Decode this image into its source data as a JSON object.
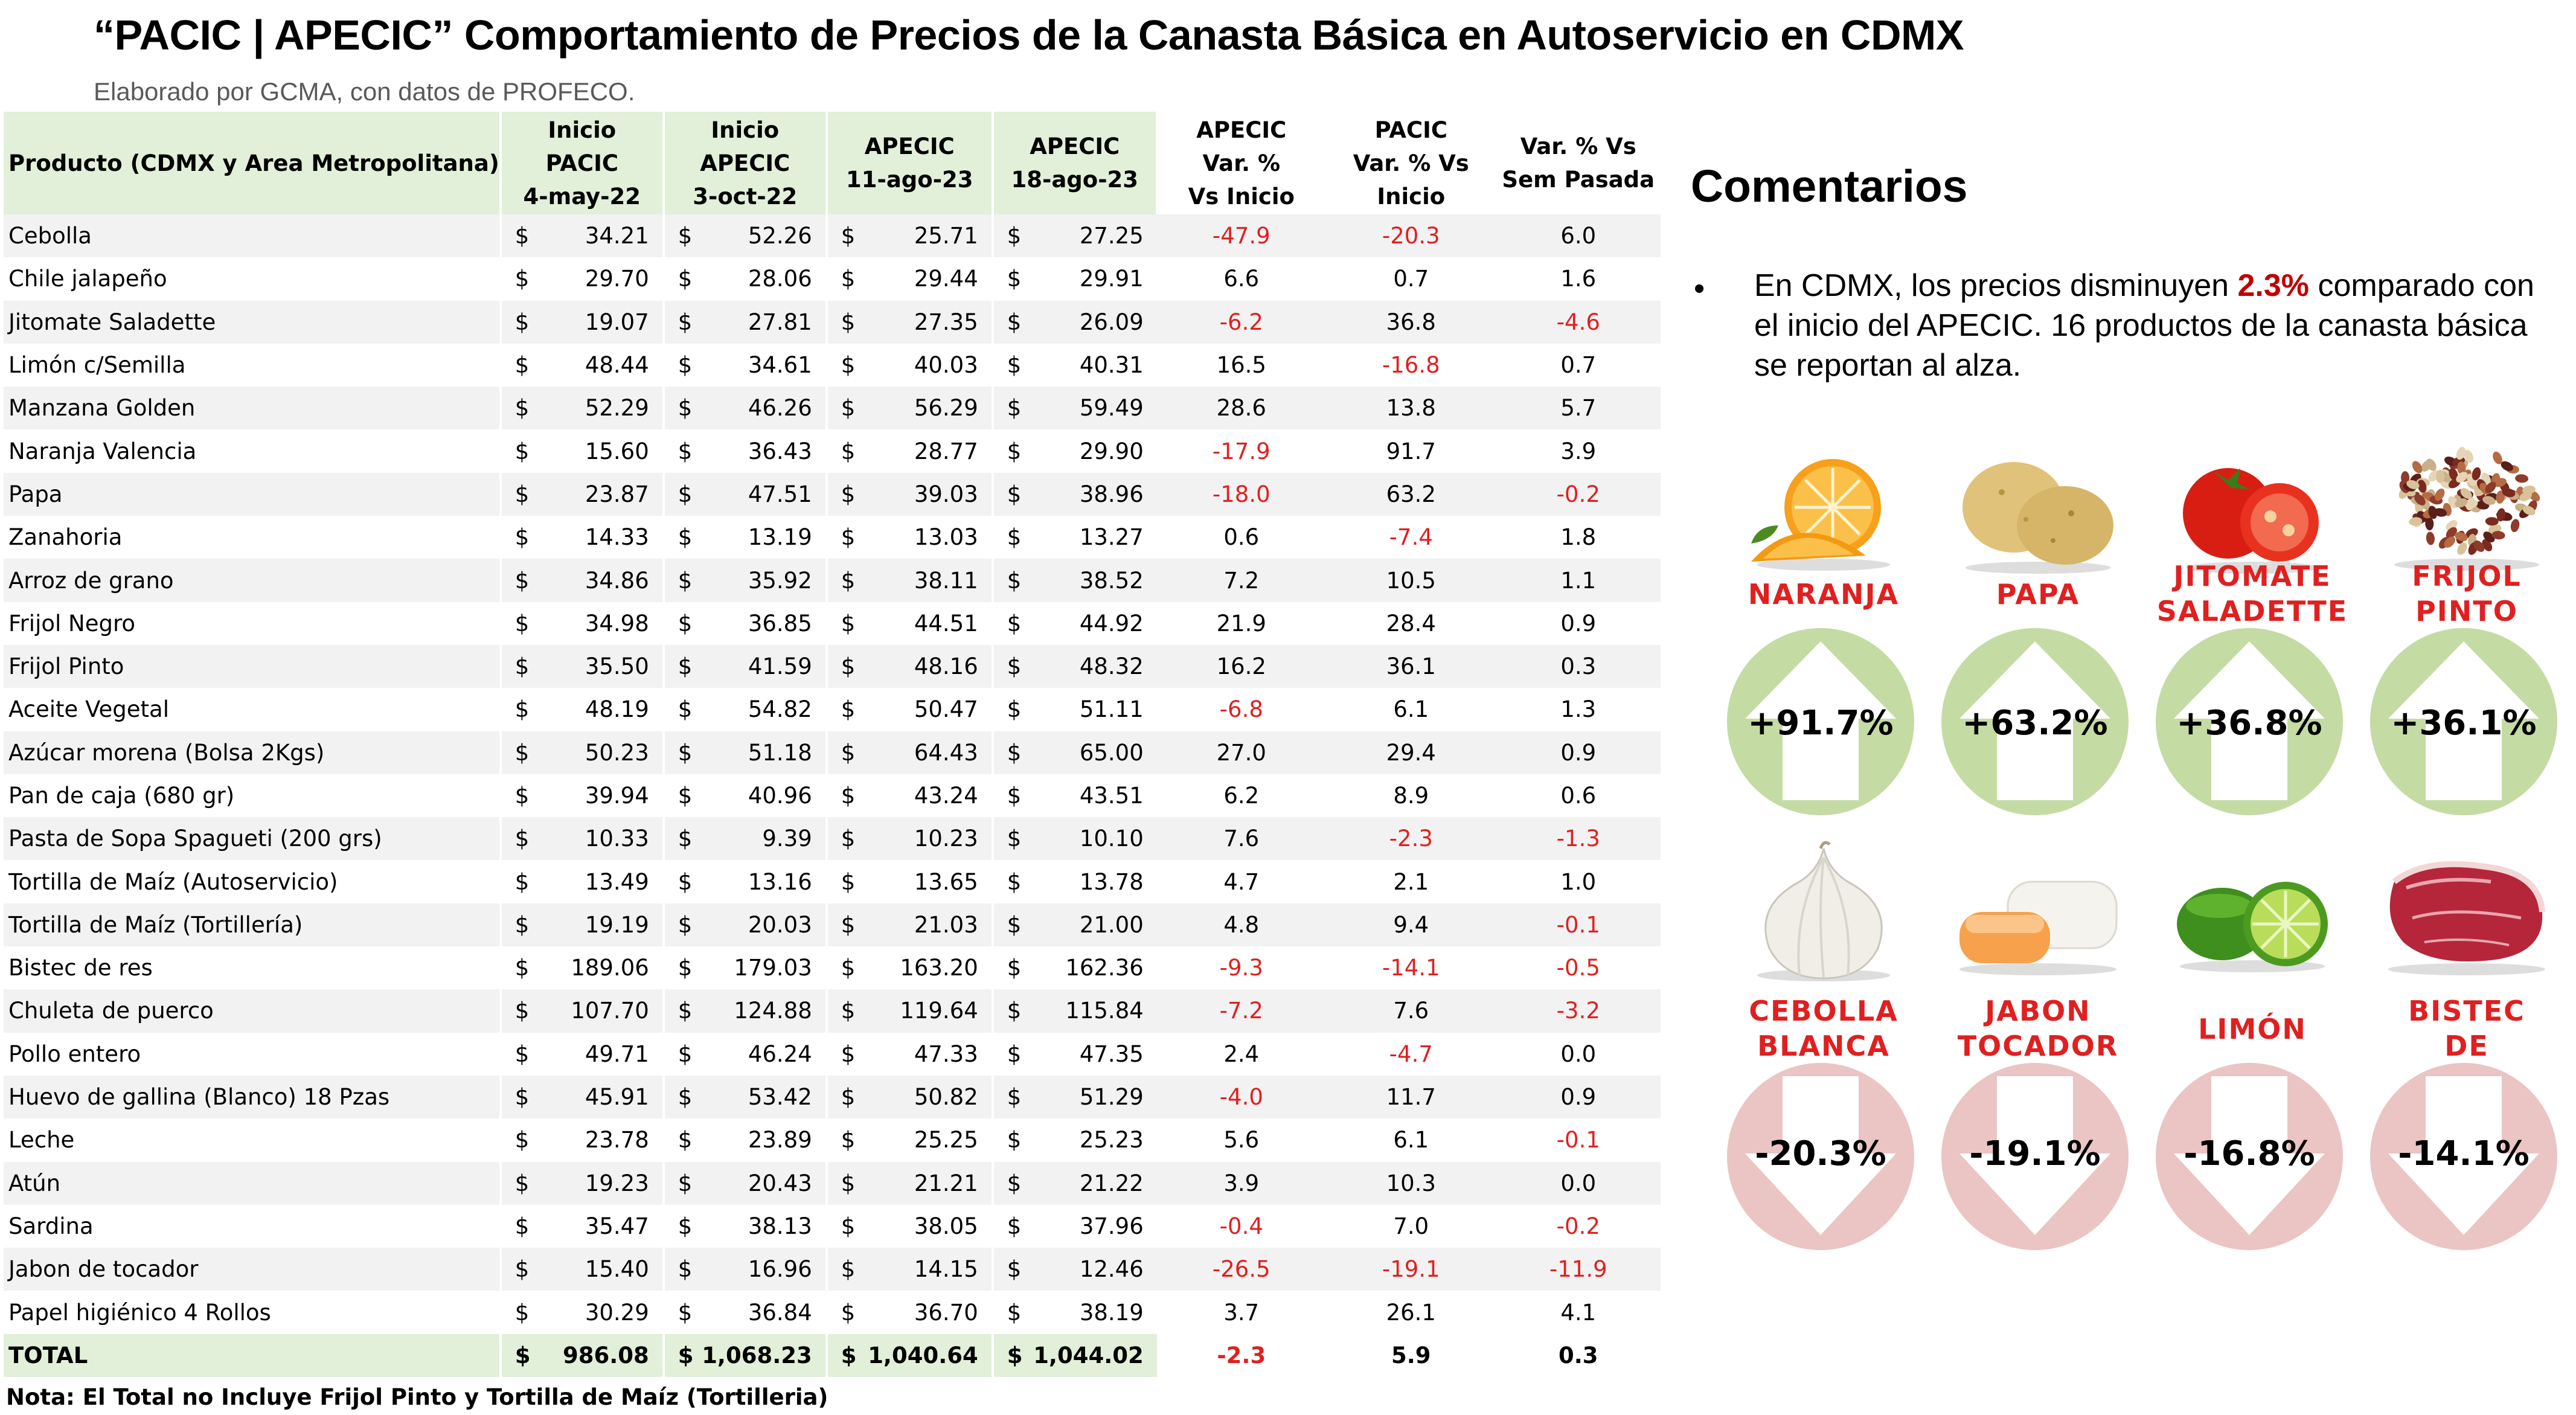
{
  "title": "“PACIC | APECIC” Comportamiento de Precios de la Canasta Básica en Autoservicio en CDMX",
  "subtitle": "Elaborado por GCMA, con datos de PROFECO.",
  "table": {
    "headers": {
      "product": "Producto (CDMX y Area Metropolitana)",
      "pacic_start": [
        "Inicio",
        "PACIC",
        "4-may-22"
      ],
      "apecic_start": [
        "Inicio",
        "APECIC",
        "3-oct-22"
      ],
      "apecic_w1": [
        "APECIC",
        "11-ago-23"
      ],
      "apecic_w2": [
        "APECIC",
        "18-ago-23"
      ],
      "apecic_var": [
        "APECIC",
        "Var. %",
        "Vs  Inicio"
      ],
      "pacic_var": [
        "PACIC",
        "Var. % Vs",
        "Inicio"
      ],
      "week_var": [
        "Var. % Vs",
        "Sem Pasada"
      ]
    },
    "currency_symbol": "$",
    "rows": [
      {
        "product": "Cebolla",
        "p1": "34.21",
        "p2": "52.26",
        "p3": "25.71",
        "p4": "27.25",
        "v1": "-47.9",
        "v2": "-20.3",
        "v3": "6.0"
      },
      {
        "product": "Chile jalapeño",
        "p1": "29.70",
        "p2": "28.06",
        "p3": "29.44",
        "p4": "29.91",
        "v1": "6.6",
        "v2": "0.7",
        "v3": "1.6"
      },
      {
        "product": "Jitomate Saladette",
        "p1": "19.07",
        "p2": "27.81",
        "p3": "27.35",
        "p4": "26.09",
        "v1": "-6.2",
        "v2": "36.8",
        "v3": "-4.6"
      },
      {
        "product": "Limón c/Semilla",
        "p1": "48.44",
        "p2": "34.61",
        "p3": "40.03",
        "p4": "40.31",
        "v1": "16.5",
        "v2": "-16.8",
        "v3": "0.7"
      },
      {
        "product": "Manzana Golden",
        "p1": "52.29",
        "p2": "46.26",
        "p3": "56.29",
        "p4": "59.49",
        "v1": "28.6",
        "v2": "13.8",
        "v3": "5.7"
      },
      {
        "product": "Naranja Valencia",
        "p1": "15.60",
        "p2": "36.43",
        "p3": "28.77",
        "p4": "29.90",
        "v1": "-17.9",
        "v2": "91.7",
        "v3": "3.9"
      },
      {
        "product": "Papa",
        "p1": "23.87",
        "p2": "47.51",
        "p3": "39.03",
        "p4": "38.96",
        "v1": "-18.0",
        "v2": "63.2",
        "v3": "-0.2"
      },
      {
        "product": "Zanahoria",
        "p1": "14.33",
        "p2": "13.19",
        "p3": "13.03",
        "p4": "13.27",
        "v1": "0.6",
        "v2": "-7.4",
        "v3": "1.8"
      },
      {
        "product": "Arroz de grano",
        "p1": "34.86",
        "p2": "35.92",
        "p3": "38.11",
        "p4": "38.52",
        "v1": "7.2",
        "v2": "10.5",
        "v3": "1.1"
      },
      {
        "product": "Frijol Negro",
        "p1": "34.98",
        "p2": "36.85",
        "p3": "44.51",
        "p4": "44.92",
        "v1": "21.9",
        "v2": "28.4",
        "v3": "0.9"
      },
      {
        "product": "Frijol Pinto",
        "p1": "35.50",
        "p2": "41.59",
        "p3": "48.16",
        "p4": "48.32",
        "v1": "16.2",
        "v2": "36.1",
        "v3": "0.3"
      },
      {
        "product": "Aceite Vegetal",
        "p1": "48.19",
        "p2": "54.82",
        "p3": "50.47",
        "p4": "51.11",
        "v1": "-6.8",
        "v2": "6.1",
        "v3": "1.3"
      },
      {
        "product": "Azúcar morena (Bolsa 2Kgs)",
        "p1": "50.23",
        "p2": "51.18",
        "p3": "64.43",
        "p4": "65.00",
        "v1": "27.0",
        "v2": "29.4",
        "v3": "0.9"
      },
      {
        "product": "Pan de caja (680 gr)",
        "p1": "39.94",
        "p2": "40.96",
        "p3": "43.24",
        "p4": "43.51",
        "v1": "6.2",
        "v2": "8.9",
        "v3": "0.6"
      },
      {
        "product": "Pasta de Sopa Spagueti (200 grs)",
        "p1": "10.33",
        "p2": "9.39",
        "p3": "10.23",
        "p4": "10.10",
        "v1": "7.6",
        "v2": "-2.3",
        "v3": "-1.3"
      },
      {
        "product": "Tortilla de Maíz (Autoservicio)",
        "p1": "13.49",
        "p2": "13.16",
        "p3": "13.65",
        "p4": "13.78",
        "v1": "4.7",
        "v2": "2.1",
        "v3": "1.0"
      },
      {
        "product": "Tortilla de Maíz (Tortillería)",
        "p1": "19.19",
        "p2": "20.03",
        "p3": "21.03",
        "p4": "21.00",
        "v1": "4.8",
        "v2": "9.4",
        "v3": "-0.1"
      },
      {
        "product": "Bistec de res",
        "p1": "189.06",
        "p2": "179.03",
        "p3": "163.20",
        "p4": "162.36",
        "v1": "-9.3",
        "v2": "-14.1",
        "v3": "-0.5"
      },
      {
        "product": "Chuleta de puerco",
        "p1": "107.70",
        "p2": "124.88",
        "p3": "119.64",
        "p4": "115.84",
        "v1": "-7.2",
        "v2": "7.6",
        "v3": "-3.2"
      },
      {
        "product": "Pollo entero",
        "p1": "49.71",
        "p2": "46.24",
        "p3": "47.33",
        "p4": "47.35",
        "v1": "2.4",
        "v2": "-4.7",
        "v3": "0.0"
      },
      {
        "product": "Huevo de gallina (Blanco) 18 Pzas",
        "p1": "45.91",
        "p2": "53.42",
        "p3": "50.82",
        "p4": "51.29",
        "v1": "-4.0",
        "v2": "11.7",
        "v3": "0.9"
      },
      {
        "product": "Leche",
        "p1": "23.78",
        "p2": "23.89",
        "p3": "25.25",
        "p4": "25.23",
        "v1": "5.6",
        "v2": "6.1",
        "v3": "-0.1"
      },
      {
        "product": "Atún",
        "p1": "19.23",
        "p2": "20.43",
        "p3": "21.21",
        "p4": "21.22",
        "v1": "3.9",
        "v2": "10.3",
        "v3": "0.0"
      },
      {
        "product": "Sardina",
        "p1": "35.47",
        "p2": "38.13",
        "p3": "38.05",
        "p4": "37.96",
        "v1": "-0.4",
        "v2": "7.0",
        "v3": "-0.2"
      },
      {
        "product": "Jabon de tocador",
        "p1": "15.40",
        "p2": "16.96",
        "p3": "14.15",
        "p4": "12.46",
        "v1": "-26.5",
        "v2": "-19.1",
        "v3": "-11.9"
      },
      {
        "product": "Papel higiénico 4 Rollos",
        "p1": "30.29",
        "p2": "36.84",
        "p3": "36.70",
        "p4": "38.19",
        "v1": "3.7",
        "v2": "26.1",
        "v3": "4.1"
      }
    ],
    "total": {
      "label": "TOTAL",
      "p1": "986.08",
      "p2": "1,068.23",
      "p3": "1,040.64",
      "p4": "1,044.02",
      "v1": "-2.3",
      "v2": "5.9",
      "v3": "0.3"
    },
    "note": "Nota: El Total no Incluye Frijol Pinto y Tortilla de Maíz (Tortilleria)",
    "negative_color": "#e02020",
    "header_green": "#e2efd9"
  },
  "comments": {
    "title": "Comentarios",
    "bullet_symbol": "•",
    "bullet_before": "En CDMX, los precios disminuyen ",
    "bullet_highlight": "2.3%",
    "bullet_after": " comparado con el inicio del APECIC. 16 productos de la canasta básica se reportan al alza."
  },
  "increases": [
    {
      "label": "NARANJA",
      "value": "+91.7%",
      "image": "orange-image"
    },
    {
      "label": "PAPA",
      "value": "+63.2%",
      "image": "potato-image"
    },
    {
      "label": "JITOMATE SALADETTE",
      "value": "+36.8%",
      "image": "tomato-image"
    },
    {
      "label": "FRIJOL PINTO",
      "value": "+36.1%",
      "image": "beans-image"
    }
  ],
  "decreases": [
    {
      "label": "CEBOLLA BLANCA",
      "value": "-20.3%",
      "image": "onion-image"
    },
    {
      "label": "JABON TOCADOR",
      "value": "-19.1%",
      "image": "soap-image"
    },
    {
      "label": "LIMÓN",
      "value": "-16.8%",
      "image": "lime-image"
    },
    {
      "label": "BISTEC DE RES",
      "value": "-14.1%",
      "image": "beef-image"
    }
  ],
  "colors": {
    "up_circle": "#c5dba4",
    "down_circle": "#ebc4c4",
    "label_red": "#e02020",
    "highlight_red": "#c00000"
  }
}
